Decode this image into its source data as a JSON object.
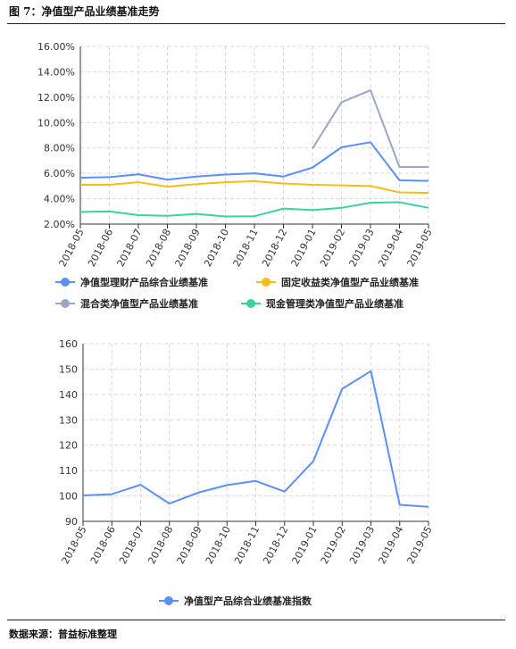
{
  "figure_title": "图 7：净值型产品业绩基准走势",
  "source": "数据来源：普益标准整理",
  "chart_data": [
    {
      "type": "line",
      "title": "",
      "xlabel": "",
      "ylabel": "",
      "categories": [
        "2018-05",
        "2018-06",
        "2018-07",
        "2018-08",
        "2018-09",
        "2018-10",
        "2018-11",
        "2018-12",
        "2019-01",
        "2019-02",
        "2019-03",
        "2019-04",
        "2019-05"
      ],
      "ylim": [
        2.0,
        16.0
      ],
      "yticks": [
        "2.00%",
        "4.00%",
        "6.00%",
        "8.00%",
        "10.00%",
        "12.00%",
        "14.00%",
        "16.00%"
      ],
      "grid": true,
      "legend_position": "bottom",
      "series": [
        {
          "name": "净值型理财产品综合业绩基准",
          "color": "#5b8ff9",
          "values": [
            5.65,
            5.7,
            5.92,
            5.5,
            5.75,
            5.9,
            6.0,
            5.75,
            6.45,
            8.05,
            8.45,
            5.45,
            5.4
          ]
        },
        {
          "name": "固定收益类净值型产品业绩基准",
          "color": "#f6bd16",
          "values": [
            5.1,
            5.1,
            5.3,
            4.95,
            5.15,
            5.3,
            5.38,
            5.2,
            5.1,
            5.05,
            5.0,
            4.5,
            4.45
          ]
        },
        {
          "name": "混合类净值型产品业绩基准",
          "color": "#9aa8c4",
          "values": [
            null,
            null,
            null,
            null,
            null,
            null,
            null,
            null,
            7.95,
            11.6,
            12.55,
            6.5,
            6.5
          ]
        },
        {
          "name": "现金管理类净值型产品业绩基准",
          "color": "#3ad29f",
          "values": [
            2.95,
            3.0,
            2.7,
            2.65,
            2.8,
            2.6,
            2.62,
            3.22,
            3.1,
            3.28,
            3.68,
            3.72,
            3.28
          ]
        }
      ]
    },
    {
      "type": "line",
      "title": "",
      "xlabel": "",
      "ylabel": "",
      "categories": [
        "2018-05",
        "2018-06",
        "2018-07",
        "2018-08",
        "2018-09",
        "2018-10",
        "2018-11",
        "2018-12",
        "2019-01",
        "2019-02",
        "2019-03",
        "2019-04",
        "2019-05"
      ],
      "ylim": [
        90,
        160
      ],
      "yticks": [
        "90",
        "100",
        "110",
        "120",
        "130",
        "140",
        "150",
        "160"
      ],
      "grid": true,
      "legend_position": "bottom",
      "series": [
        {
          "name": "净值型产品综合业绩基准指数",
          "color": "#5b8ff9",
          "values": [
            100.2,
            100.7,
            104.4,
            97.0,
            101.3,
            104.3,
            105.9,
            101.7,
            113.7,
            142.2,
            149.2,
            96.5,
            95.7
          ]
        }
      ]
    }
  ]
}
